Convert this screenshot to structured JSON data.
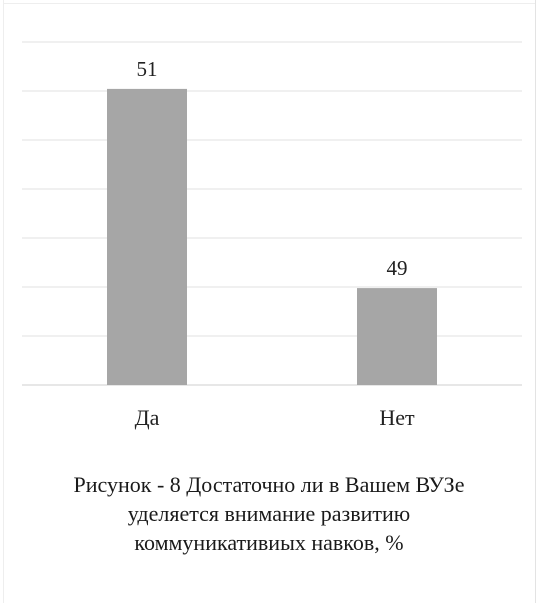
{
  "chart_data": {
    "type": "bar",
    "categories": [
      "Да",
      "Нет"
    ],
    "values": [
      51,
      49
    ],
    "data_labels": [
      "51",
      "49"
    ],
    "title": "",
    "xlabel": "",
    "ylabel": "",
    "bar_color": "#a6a6a6",
    "grid": true,
    "legend": "none"
  },
  "caption": {
    "text": "Рисунок - 8 Достаточно ли в Вашем ВУЗе уделяется внимание развитию коммуникативиых навков, %"
  }
}
